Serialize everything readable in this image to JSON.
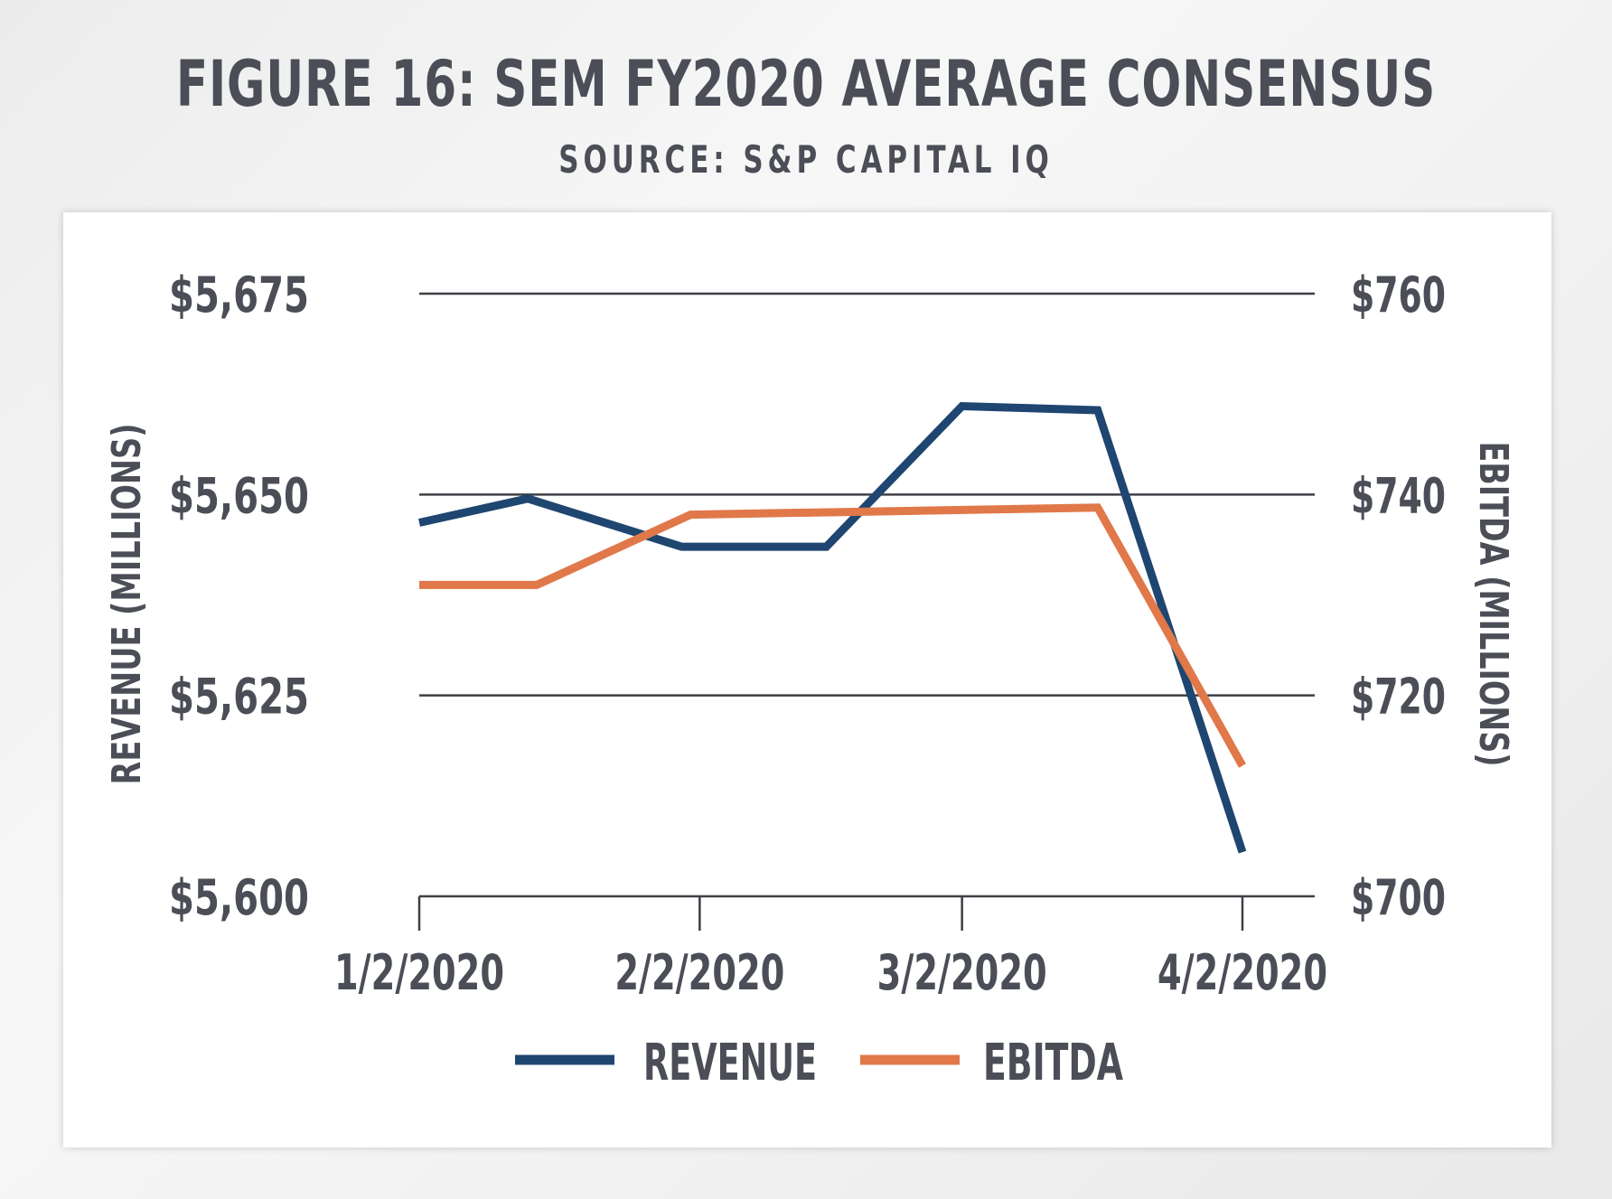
{
  "figure": {
    "title": "FIGURE 16: SEM FY2020 AVERAGE CONSENSUS",
    "source": "SOURCE: S&P CAPITAL IQ"
  },
  "colors": {
    "revenue": "#1f4670",
    "ebitda": "#e0784a",
    "grid": "#3d3f45",
    "text": "#4b4e57"
  },
  "chart_data": {
    "type": "line",
    "title": "FIGURE 16: SEM FY2020 AVERAGE CONSENSUS",
    "subtitle": "SOURCE: S&P CAPITAL IQ",
    "x_tick_labels": [
      "1/2/2020",
      "2/2/2020",
      "3/2/2020",
      "4/2/2020"
    ],
    "y_left": {
      "label": "REVENUE (MILLIONS)",
      "ylim": [
        5600,
        5675
      ],
      "ticks": [
        5600,
        5625,
        5650,
        5675
      ],
      "tick_labels": [
        "$5,600",
        "$5,625",
        "$5,650",
        "$5,675"
      ]
    },
    "y_right": {
      "label": "EBITDA (MILLIONS)",
      "ylim": [
        700,
        760
      ],
      "ticks": [
        700,
        720,
        740,
        760
      ],
      "tick_labels": [
        "$700",
        "$720",
        "$740",
        "$760"
      ]
    },
    "grid": true,
    "legend": "bottom",
    "series": [
      {
        "name": "REVENUE",
        "axis": "left",
        "x": [
          "2020-01-02",
          "2020-01-14",
          "2020-01-31",
          "2020-02-16",
          "2020-03-02",
          "2020-03-17",
          "2020-04-02"
        ],
        "y": [
          5646.5,
          5649.5,
          5643.5,
          5643.5,
          5661,
          5660.5,
          5605.5
        ]
      },
      {
        "name": "EBITDA",
        "axis": "right",
        "x": [
          "2020-01-02",
          "2020-01-15",
          "2020-02-01",
          "2020-03-17",
          "2020-04-02"
        ],
        "y": [
          731,
          731,
          738,
          738.7,
          713
        ]
      }
    ]
  }
}
